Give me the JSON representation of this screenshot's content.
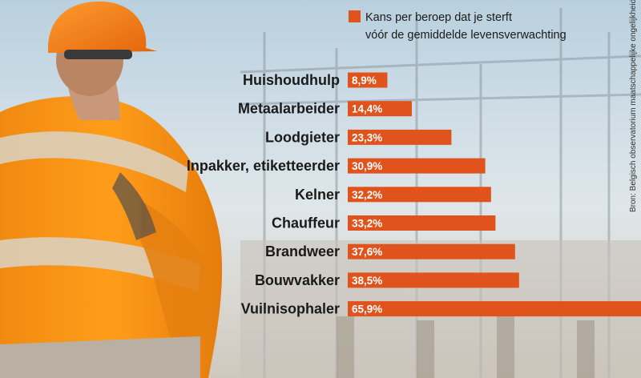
{
  "chart_data": {
    "type": "bar",
    "orientation": "horizontal",
    "categories": [
      "Huishoudhulp",
      "Metaalarbeider",
      "Loodgieter",
      "Inpakker, etiketteerder",
      "Kelner",
      "Chauffeur",
      "Brandweer",
      "Bouwvakker",
      "Vuilnisophaler"
    ],
    "values": [
      8.9,
      14.4,
      23.3,
      30.9,
      32.2,
      33.2,
      37.6,
      38.5,
      65.9
    ],
    "value_labels": [
      "8,9%",
      "14,4%",
      "23,3%",
      "30,9%",
      "32,2%",
      "33,2%",
      "37,6%",
      "38,5%",
      "65,9%"
    ],
    "value_unit": "%",
    "legend": {
      "line1": "Kans per beroep dat je sterft",
      "line2": "vóór de gemiddelde levensverwachting",
      "placement": "top-right"
    },
    "source": "Bron: Belgisch observatorium maatschappelijke ongelijkheid",
    "bar_color": "#e0531c",
    "grid": false,
    "background": "photo of a construction worker in a hi-vis orange jacket and hard hat in front of an electrical substation"
  }
}
